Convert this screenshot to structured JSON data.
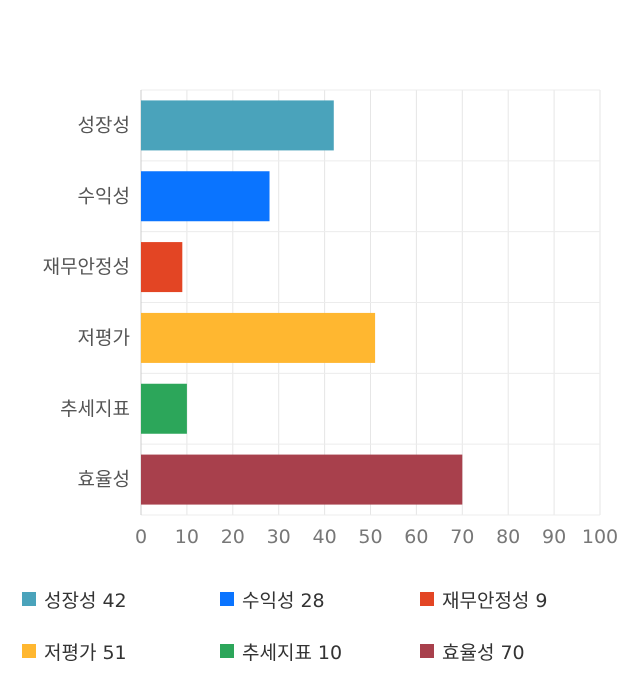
{
  "chart_data": {
    "type": "bar",
    "orientation": "horizontal",
    "categories": [
      "성장성",
      "수익성",
      "재무안정성",
      "저평가",
      "추세지표",
      "효율성"
    ],
    "values": [
      42,
      28,
      9,
      51,
      10,
      70
    ],
    "colors": [
      "#4aa3bb",
      "#0a74ff",
      "#e34524",
      "#ffb730",
      "#2ca65a",
      "#a8404c"
    ],
    "xlim": [
      0,
      100
    ],
    "x_ticks": [
      "0",
      "10",
      "20",
      "30",
      "40",
      "50",
      "60",
      "70",
      "80",
      "90",
      "100"
    ],
    "grid": true,
    "legend_position": "bottom"
  }
}
